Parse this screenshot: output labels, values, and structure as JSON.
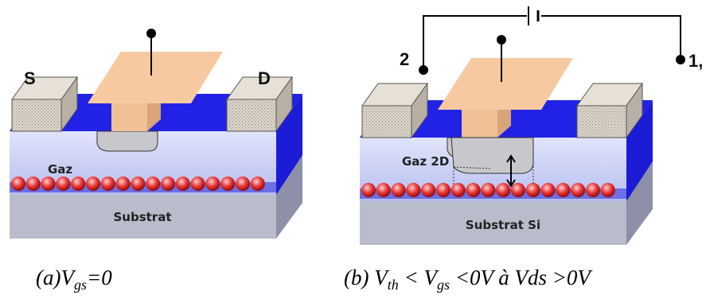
{
  "panels": [
    {
      "labels": {
        "source": "S",
        "drain": "D",
        "gas": "Gaz",
        "substrate": "Substrat"
      },
      "caption": [
        "(a)V",
        "gs",
        "=0"
      ]
    },
    {
      "labels": {
        "terminal_left": "2",
        "terminal_right": "1,",
        "gas": "Gaz 2D",
        "substrate": "Substrat Si"
      },
      "caption": [
        "(b) V",
        "th",
        " < V",
        "gs",
        " <0V à Vds >0V"
      ]
    }
  ]
}
